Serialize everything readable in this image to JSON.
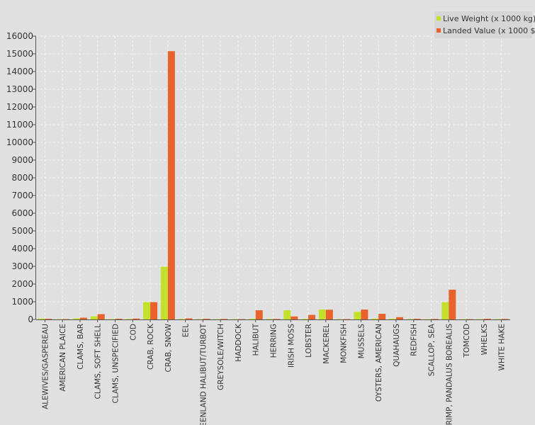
{
  "chart_data": {
    "type": "bar",
    "title": "",
    "xlabel": "",
    "ylabel": "",
    "ylim": [
      0,
      16000
    ],
    "yticks": [
      0,
      1000,
      2000,
      3000,
      4000,
      5000,
      6000,
      7000,
      8000,
      9000,
      10000,
      11000,
      12000,
      13000,
      14000,
      15000,
      16000
    ],
    "grid": true,
    "legend_position": "top-right",
    "categories": [
      "ALEWIVES/GASPEREAU",
      "AMERICAN PLAICE",
      "CLAMS, BAR",
      "CLAMS, SOFT SHELL",
      "CLAMS, UNSPECIFIED",
      "COD",
      "CRAB, ROCK",
      "CRAB, SNOW",
      "EEL",
      "GREENLAND HALIBUT/TURBOT",
      "GREYSOLE/WITCH",
      "HADDOCK",
      "HALIBUT",
      "HERRING",
      "IRISH MOSS",
      "LOBSTER",
      "MACKEREL",
      "MONKFISH",
      "MUSSELS",
      "OYSTERS, AMERICAN",
      "QUAHAUGS",
      "REDFISH",
      "SCALLOP, SEA",
      "SHRIMP, PANDALUS BOREALIS",
      "TOMCOD",
      "WHELKS",
      "WHITE HAKE"
    ],
    "series": [
      {
        "name": "Live Weight (x 1000 kg)",
        "color": "#c3e02c",
        "values": [
          50,
          20,
          60,
          180,
          20,
          30,
          980,
          2980,
          30,
          20,
          20,
          20,
          40,
          30,
          520,
          30,
          560,
          20,
          430,
          50,
          40,
          20,
          20,
          980,
          20,
          20,
          20
        ]
      },
      {
        "name": "Landed Value (x 1000 $)",
        "color": "#e8632c",
        "values": [
          40,
          20,
          100,
          300,
          40,
          50,
          980,
          15150,
          60,
          40,
          30,
          20,
          520,
          30,
          170,
          260,
          550,
          20,
          560,
          320,
          130,
          40,
          30,
          1680,
          20,
          40,
          30
        ]
      }
    ]
  }
}
